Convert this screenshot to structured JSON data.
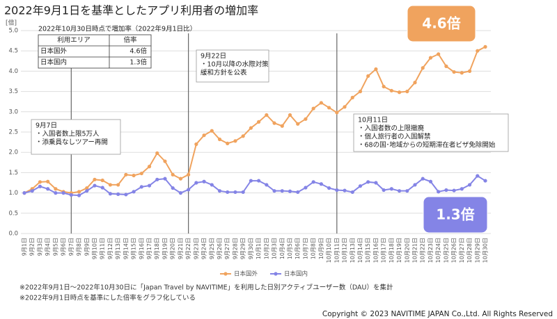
{
  "chart_data": {
    "type": "line",
    "title": "2022年9月1日を基準としたアプリ利用者の増加率",
    "y_unit": "[倍]",
    "categories": [
      "9月1日",
      "9月2日",
      "9月3日",
      "9月4日",
      "9月5日",
      "9月6日",
      "9月7日",
      "9月8日",
      "9月9日",
      "9月10日",
      "9月11日",
      "9月12日",
      "9月13日",
      "9月14日",
      "9月15日",
      "9月16日",
      "9月17日",
      "9月18日",
      "9月19日",
      "9月20日",
      "9月21日",
      "9月22日",
      "9月23日",
      "9月24日",
      "9月25日",
      "9月26日",
      "9月27日",
      "9月28日",
      "9月29日",
      "9月30日",
      "10月1日",
      "10月2日",
      "10月3日",
      "10月4日",
      "10月5日",
      "10月6日",
      "10月7日",
      "10月8日",
      "10月9日",
      "10月10日",
      "10月11日",
      "10月12日",
      "10月13日",
      "10月14日",
      "10月15日",
      "10月16日",
      "10月17日",
      "10月18日",
      "10月19日",
      "10月20日",
      "10月21日",
      "10月22日",
      "10月23日",
      "10月24日",
      "10月25日",
      "10月26日",
      "10月27日",
      "10月28日",
      "10月29日",
      "10月30日"
    ],
    "series": [
      {
        "name": "日本国外",
        "color": "#f0a35e",
        "values": [
          1.0,
          1.1,
          1.27,
          1.28,
          1.1,
          1.03,
          1.0,
          1.03,
          1.12,
          1.33,
          1.31,
          1.2,
          1.2,
          1.45,
          1.43,
          1.48,
          1.65,
          1.98,
          1.78,
          1.45,
          1.35,
          1.45,
          2.2,
          2.42,
          2.53,
          2.32,
          2.22,
          2.28,
          2.4,
          2.6,
          2.75,
          2.92,
          2.72,
          2.65,
          2.92,
          2.7,
          2.82,
          3.08,
          3.22,
          3.1,
          2.98,
          3.12,
          3.35,
          3.5,
          3.88,
          4.05,
          3.62,
          3.52,
          3.48,
          3.5,
          3.72,
          4.08,
          4.33,
          4.42,
          4.12,
          3.98,
          3.96,
          4.0,
          4.5,
          4.6
        ]
      },
      {
        "name": "日本国内",
        "color": "#8484e6",
        "values": [
          1.0,
          1.05,
          1.16,
          1.1,
          1.0,
          1.0,
          0.95,
          0.94,
          1.05,
          1.18,
          1.13,
          0.98,
          0.97,
          0.96,
          1.03,
          1.15,
          1.18,
          1.33,
          1.35,
          1.12,
          1.0,
          1.08,
          1.25,
          1.28,
          1.2,
          1.05,
          1.02,
          1.02,
          1.02,
          1.3,
          1.3,
          1.2,
          1.05,
          1.05,
          1.04,
          1.02,
          1.13,
          1.27,
          1.22,
          1.12,
          1.07,
          1.06,
          1.02,
          1.17,
          1.27,
          1.25,
          1.07,
          1.1,
          1.05,
          1.05,
          1.2,
          1.35,
          1.28,
          1.03,
          1.07,
          1.06,
          1.1,
          1.2,
          1.42,
          1.3
        ]
      }
    ],
    "ylim": [
      0,
      5
    ],
    "yticks": [
      {
        "value": 0,
        "label": "0.0"
      },
      0.5,
      {
        "value": 1,
        "label": "1.0"
      },
      1.5,
      {
        "value": 2,
        "label": "2.0"
      },
      2.5,
      {
        "value": 3,
        "label": "3.0"
      },
      3.5,
      {
        "value": 4,
        "label": "4.0"
      },
      4.5,
      {
        "value": 5,
        "label": "5.0"
      }
    ],
    "grid": true,
    "annotations": [
      {
        "lines": [
          "9月7日",
          "・入国者数上限5万人",
          "・添乗員なしツアー再開"
        ]
      },
      {
        "lines": [
          "9月22日",
          "・10月以降の水際対策",
          "緩和方針を公表"
        ]
      },
      {
        "lines": [
          "10月11日",
          "・入国者数の上限撤廃",
          "・個人旅行者の入国解禁",
          "・68の国･地域からの短期滞在者ビザ免除開始"
        ]
      }
    ],
    "summary_table": {
      "title": "2022年10月30日時点で増加率（2022年9月1日比）",
      "header": [
        "利用エリア",
        "倍率"
      ],
      "rows": [
        [
          "日本国外",
          "4.6倍"
        ],
        [
          "日本国内",
          "1.3倍"
        ]
      ]
    },
    "callouts": [
      "4.6倍",
      "1.3倍"
    ],
    "footnotes": [
      "※2022年9月1日～2022年10月30日に「Japan Travel by NAVITIME」を利用した日別アクティブユーザー数（DAU）を集計",
      "※2022年9月1日時点を基準にした倍率をグラフ化している"
    ],
    "copyright": "Copyright © 2023 NAVITIME JAPAN Co.,Ltd. All Rights Reserved"
  }
}
